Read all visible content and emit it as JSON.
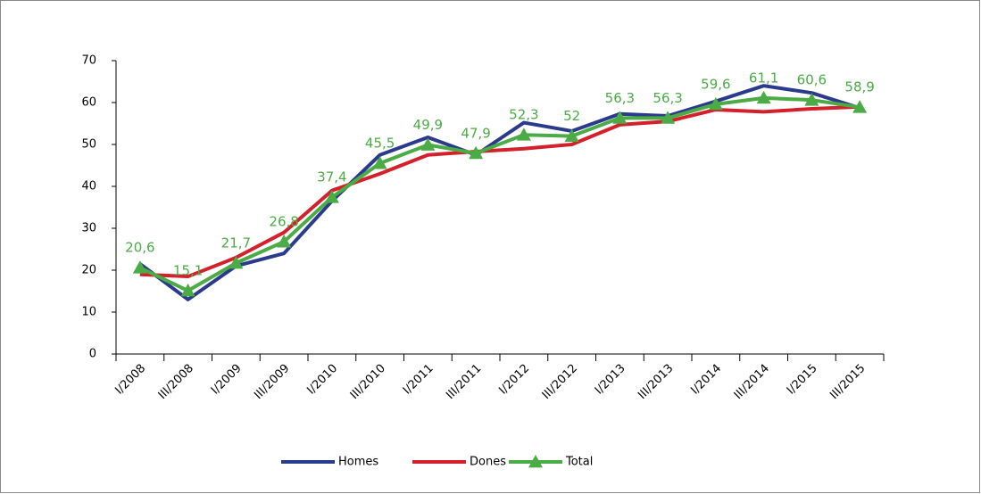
{
  "chart_data": {
    "type": "line",
    "categories": [
      "I/2008",
      "III/2008",
      "I/2009",
      "III/2009",
      "I/2010",
      "III/2010",
      "I/2011",
      "III/2011",
      "I/2012",
      "III/2012",
      "I/2013",
      "III/2013",
      "I/2014",
      "III/2014",
      "I/2015",
      "III/2015"
    ],
    "series": [
      {
        "name": "Homes",
        "color": "#2a3a8c",
        "values": [
          21.5,
          13,
          21,
          24,
          36.5,
          47.5,
          51.7,
          47.5,
          55.2,
          53.2,
          57.3,
          56.8,
          60.3,
          64,
          62.3,
          58.7
        ]
      },
      {
        "name": "Dones",
        "color": "#d4202a",
        "values": [
          19,
          18.5,
          23,
          29,
          39,
          43,
          47.5,
          48.3,
          49,
          50,
          54.7,
          55.5,
          58.3,
          57.8,
          58.5,
          59
        ]
      },
      {
        "name": "Total",
        "color": "#4bab45",
        "marker": "triangle",
        "values": [
          20.6,
          15.1,
          21.7,
          26.8,
          37.4,
          45.5,
          49.9,
          47.9,
          52.3,
          52,
          56.3,
          56.3,
          59.6,
          61.1,
          60.6,
          58.9
        ],
        "value_labels": [
          "20,6",
          "15,1",
          "21,7",
          "26,8",
          "37,4",
          "45,5",
          "49,9",
          "47,9",
          "52,3",
          "52",
          "56,3",
          "56,3",
          "59,6",
          "61,1",
          "60,6",
          "58,9"
        ]
      }
    ],
    "ylim": [
      0,
      70
    ],
    "yticks": [
      0,
      10,
      20,
      30,
      40,
      50,
      60,
      70
    ],
    "grid": false,
    "legend": "bottom"
  }
}
